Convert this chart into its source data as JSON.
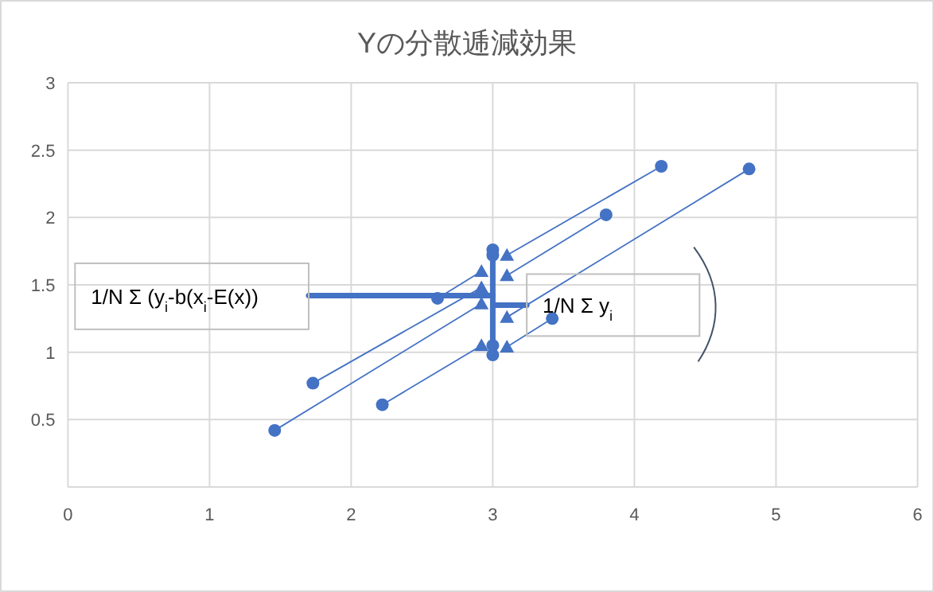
{
  "chart_data": {
    "type": "scatter",
    "title": "Yの分散逓減効果",
    "xlim": [
      0,
      6
    ],
    "xticks": [
      0,
      1,
      2,
      3,
      4,
      5,
      6
    ],
    "ylim": [
      0,
      3
    ],
    "yticks": [
      {
        "value": 0,
        "label": null
      },
      0.5,
      1,
      1.5,
      2,
      2.5,
      3
    ],
    "grid": true,
    "marker": "circle",
    "series": [
      {
        "color": "#4472c4",
        "x": [
          1.46,
          1.73,
          2.22,
          2.61,
          3.42,
          3.8,
          4.19,
          4.81
        ],
        "values": [
          0.42,
          0.77,
          0.61,
          1.4,
          1.25,
          2.02,
          2.38,
          2.36
        ]
      },
      {
        "marker": "triangle",
        "color": "#4472c4",
        "x": [
          2.92,
          2.92,
          2.92,
          2.92,
          3.1,
          3.1,
          3.1,
          3.1
        ],
        "values": [
          1.36,
          1.48,
          1.05,
          1.6,
          1.04,
          1.57,
          1.72,
          1.26
        ]
      },
      {
        "type": "line",
        "marker": "none",
        "color": "#4472c4",
        "x": [
          1.46,
          2.92
        ],
        "values": [
          0.42,
          1.36
        ]
      },
      {
        "type": "line",
        "marker": "none",
        "color": "#4472c4",
        "x": [
          1.73,
          2.92
        ],
        "values": [
          0.77,
          1.48
        ]
      },
      {
        "type": "line",
        "marker": "none",
        "color": "#4472c4",
        "x": [
          2.22,
          2.92
        ],
        "values": [
          0.61,
          1.05
        ]
      },
      {
        "type": "line",
        "marker": "none",
        "color": "#4472c4",
        "x": [
          2.61,
          2.92
        ],
        "values": [
          1.4,
          1.6
        ]
      },
      {
        "type": "line",
        "marker": "none",
        "color": "#4472c4",
        "x": [
          3.42,
          3.1
        ],
        "values": [
          1.25,
          1.04
        ]
      },
      {
        "type": "line",
        "marker": "none",
        "color": "#4472c4",
        "x": [
          3.8,
          3.1
        ],
        "values": [
          2.02,
          1.57
        ]
      },
      {
        "type": "line",
        "marker": "none",
        "color": "#4472c4",
        "x": [
          4.19,
          3.1
        ],
        "values": [
          2.38,
          1.72
        ]
      },
      {
        "type": "line",
        "marker": "none",
        "color": "#4472c4",
        "x": [
          4.81,
          3.1
        ],
        "values": [
          2.36,
          1.26
        ]
      },
      {
        "type": "line",
        "marker": "circle",
        "color": "#4472c4",
        "x": [
          3,
          3,
          3,
          3
        ],
        "values": [
          0.98,
          1.05,
          1.72,
          1.76
        ]
      },
      {
        "type": "line",
        "marker": "none",
        "color": "#4472c4",
        "x": [
          1.7,
          3
        ],
        "values": [
          1.42,
          1.42
        ]
      },
      {
        "type": "line",
        "marker": "none",
        "color": "#4472c4",
        "x": [
          3,
          3.24
        ],
        "values": [
          1.35,
          1.35
        ]
      }
    ],
    "annotations": [
      "1/N Σ (y$_{i}$-b(x$_{i}$-E(x))",
      "1/N Σ y$_{i}$"
    ]
  }
}
